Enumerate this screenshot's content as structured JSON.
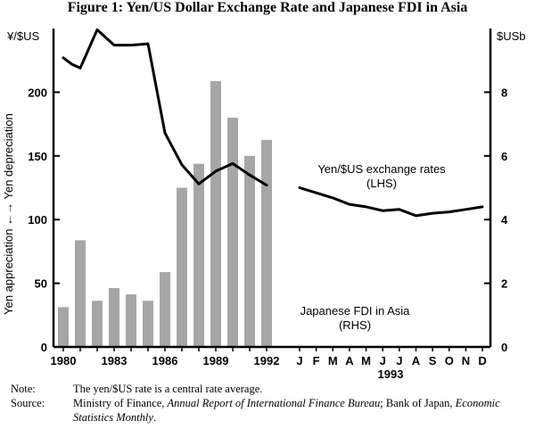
{
  "figure_title": "Figure 1: Yen/US Dollar Exchange Rate and Japanese FDI in Asia",
  "notes": {
    "note_label": "Note:",
    "note_text": "The yen/$US rate is a central rate average.",
    "source_label": "Source:",
    "source_part1": "Ministry of Finance, ",
    "source_italic1": "Annual Report of International Finance Bureau",
    "source_part2": "; Bank of Japan, ",
    "source_italic2": "Economic Statistics Monthly",
    "source_part3": "."
  },
  "chart_data": {
    "type": "bar+line",
    "left_axis": {
      "unit_label": "¥/$US",
      "title": "Yen appreciation ←→ Yen depreciation",
      "ylim": [
        0,
        250
      ],
      "ticks": [
        0,
        50,
        100,
        150,
        200
      ]
    },
    "right_axis": {
      "unit_label": "$USb",
      "ylim": [
        0,
        10
      ],
      "ticks": [
        0,
        2,
        4,
        6,
        8
      ]
    },
    "x_tick_labels_annual": [
      "1980",
      "1983",
      "1986",
      "1989",
      "1992"
    ],
    "x_tick_labels_monthly": [
      "J",
      "F",
      "M",
      "A",
      "M",
      "J",
      "J",
      "A",
      "S",
      "O",
      "N",
      "D"
    ],
    "month_year_label": "1993",
    "series": [
      {
        "name": "Japanese FDI in Asia (RHS)",
        "type": "bar",
        "axis": "right",
        "x": [
          1980,
          1981,
          1982,
          1983,
          1984,
          1985,
          1986,
          1987,
          1988,
          1989,
          1990,
          1991,
          1992
        ],
        "values": [
          1.25,
          3.35,
          1.45,
          1.85,
          1.65,
          1.45,
          2.35,
          5.0,
          5.75,
          8.35,
          7.2,
          6.0,
          6.5
        ]
      },
      {
        "name": "Yen/$US exchange rates (LHS)",
        "type": "line",
        "axis": "left",
        "annual_x": [
          1980,
          1980.5,
          1981,
          1982,
          1983,
          1984,
          1985,
          1986,
          1987,
          1988,
          1989,
          1990,
          1991,
          1992
        ],
        "annual_values": [
          227,
          222,
          219,
          249,
          237,
          237,
          238,
          168,
          143,
          128,
          138,
          144,
          135,
          127
        ],
        "monthly_x": [
          "J",
          "F",
          "M",
          "A",
          "M",
          "J",
          "J",
          "A",
          "S",
          "O",
          "N",
          "D"
        ],
        "monthly_values": [
          125,
          121,
          117,
          112,
          110,
          107,
          108,
          103,
          105,
          106,
          108,
          110
        ]
      }
    ],
    "labels": {
      "line_label_1": "Yen/$US exchange rates",
      "line_label_2": "(LHS)",
      "bar_label_1": "Japanese FDI in Asia",
      "bar_label_2": "(RHS)"
    },
    "colors": {
      "bar": "#a6a6a6",
      "line": "#000000"
    }
  }
}
